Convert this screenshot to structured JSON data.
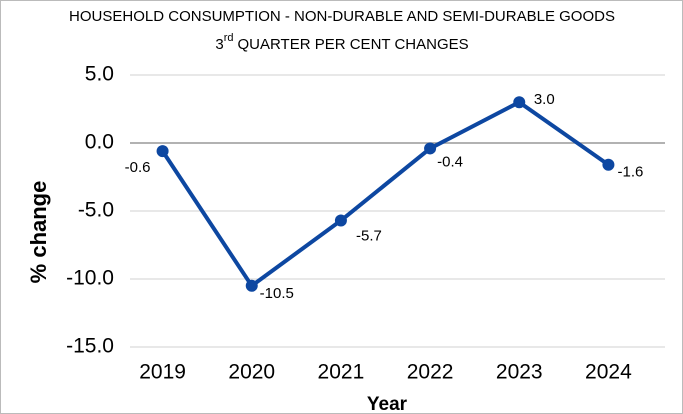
{
  "chart_data": {
    "type": "line",
    "title": "HOUSEHOLD CONSUMPTION - NON-DURABLE AND SEMI-DURABLE GOODS",
    "subtitle": {
      "number": "3",
      "suffix": "rd",
      "text": "QUARTER PER CENT CHANGES"
    },
    "x_label": "Year",
    "y_label": "% change",
    "categories": [
      "2019",
      "2020",
      "2021",
      "2022",
      "2023",
      "2024"
    ],
    "series": [
      {
        "name": "% change",
        "color": "#0d47a1",
        "values": [
          -0.6,
          -10.5,
          -5.7,
          -0.4,
          3.0,
          -1.6
        ],
        "value_labels": [
          "-0.6",
          "-10.5",
          "-5.7",
          "-0.4",
          "3.0",
          "-1.6"
        ]
      }
    ],
    "ylim": [
      -15,
      5
    ],
    "yticks": [
      {
        "value": -15,
        "label": "-15.0"
      },
      {
        "value": -10,
        "label": "-10.0"
      },
      {
        "value": -5,
        "label": "-5.0"
      },
      {
        "value": 0,
        "label": "0.0"
      },
      {
        "value": 5,
        "label": "5.0"
      }
    ],
    "grid": true
  }
}
